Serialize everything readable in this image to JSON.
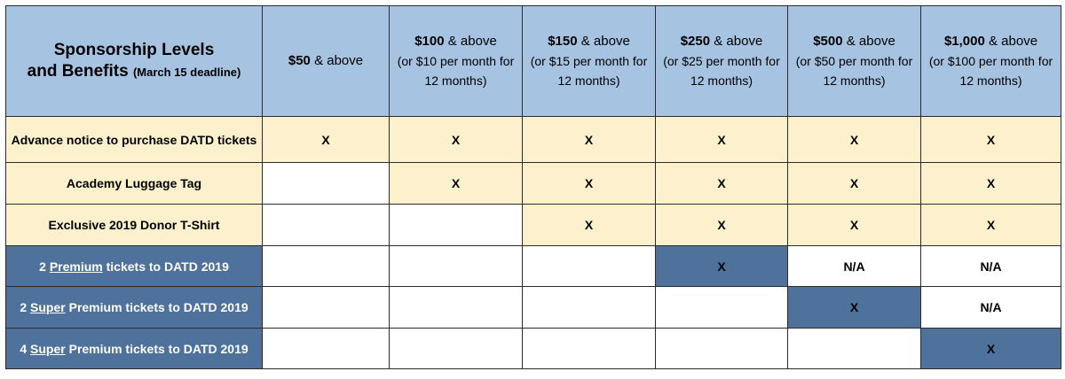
{
  "header": {
    "title_line1": "Sponsorship Levels",
    "title_line2": "and Benefits",
    "deadline": "(March 15 deadline)",
    "levels": [
      {
        "amount": "$50",
        "suffix": " & above",
        "note": ""
      },
      {
        "amount": "$100",
        "suffix": " & above",
        "note": "(or $10 per month for 12 months)"
      },
      {
        "amount": "$150",
        "suffix": " & above",
        "note": "(or $15 per month for 12 months)"
      },
      {
        "amount": "$250",
        "suffix": " & above",
        "note": "(or $25 per month for 12 months)"
      },
      {
        "amount": "$500",
        "suffix": " & above",
        "note": "(or $50 per month for 12 months)"
      },
      {
        "amount": "$1,000",
        "suffix": " & above",
        "note": "(or $100 per month for 12 months)"
      }
    ]
  },
  "rows": [
    {
      "pre": "Advance notice to purchase DATD tickets",
      "u": "",
      "post": "",
      "cells": [
        "X",
        "X",
        "X",
        "X",
        "X",
        "X"
      ]
    },
    {
      "pre": "Academy Luggage Tag",
      "u": "",
      "post": "",
      "cells": [
        "",
        "X",
        "X",
        "X",
        "X",
        "X"
      ]
    },
    {
      "pre": "Exclusive 2019 Donor T-Shirt",
      "u": "",
      "post": "",
      "cells": [
        "",
        "",
        "X",
        "X",
        "X",
        "X"
      ]
    },
    {
      "pre": "2 ",
      "u": "Premium",
      "post": " tickets to DATD 2019",
      "cells": [
        "",
        "",
        "",
        "X",
        "N/A",
        "N/A"
      ]
    },
    {
      "pre": "2 ",
      "u": "Super",
      "post": " Premium tickets to DATD 2019",
      "cells": [
        "",
        "",
        "",
        "",
        "X",
        "N/A"
      ]
    },
    {
      "pre": "4 ",
      "u": "Super",
      "post": " Premium tickets to DATD 2019",
      "cells": [
        "",
        "",
        "",
        "",
        "",
        "X"
      ]
    }
  ],
  "colors": {
    "header_bg": "#a7c3e2",
    "cream": "#fcf1cc",
    "dark": "#4e729b",
    "white": "#ffffff"
  }
}
